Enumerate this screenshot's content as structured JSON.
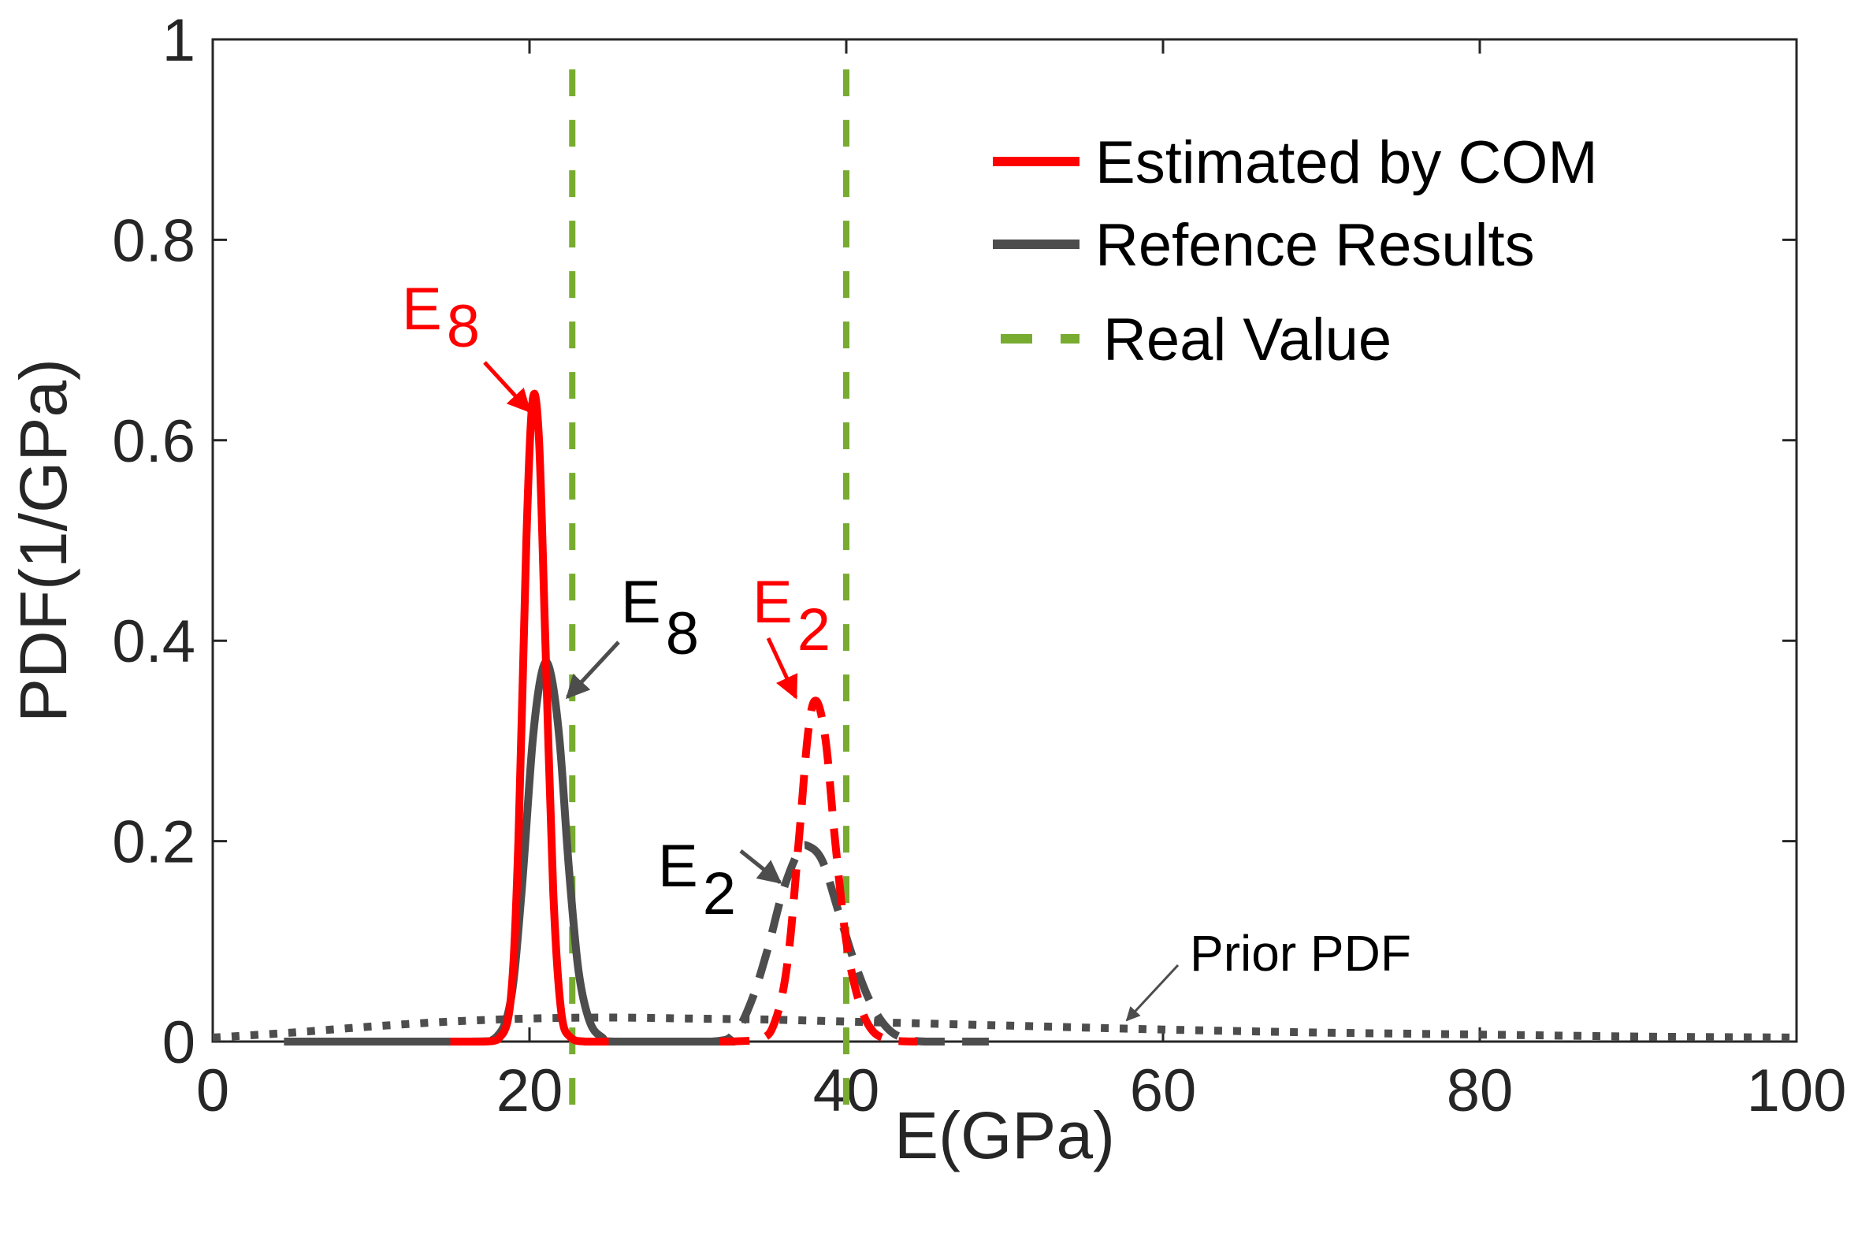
{
  "chart_data": {
    "type": "line",
    "xlabel": "E(GPa)",
    "ylabel": "PDF(1/GPa)",
    "xlim": [
      0,
      100
    ],
    "ylim": [
      0,
      1
    ],
    "xticks": [
      "0",
      "20",
      "40",
      "60",
      "80",
      "100"
    ],
    "yticks": [
      "0",
      "0.2",
      "0.4",
      "0.6",
      "0.8",
      "1"
    ],
    "grid": false,
    "legend": {
      "placement": "top-right",
      "entries": [
        {
          "label": "Estimated by COM",
          "color": "#ff0000",
          "style": "solid"
        },
        {
          "label": "Refence Results",
          "color": "#4d4d4d",
          "style": "solid"
        },
        {
          "label": "Real Value",
          "color": "#77ac30",
          "style": "dashed"
        }
      ]
    },
    "series": [
      {
        "name": "Estimated by COM E8",
        "color": "#ff0000",
        "style": "solid",
        "x": [
          15,
          17,
          18,
          18.8,
          19.3,
          19.8,
          20.2,
          20.6,
          21.0,
          21.5,
          22.0,
          22.6,
          23.5,
          25
        ],
        "y": [
          0,
          0,
          0.002,
          0.04,
          0.2,
          0.5,
          0.64,
          0.6,
          0.4,
          0.15,
          0.03,
          0.004,
          0,
          0
        ]
      },
      {
        "name": "Refence Results E8",
        "color": "#4d4d4d",
        "style": "solid",
        "x": [
          4.5,
          16,
          17.8,
          18.8,
          19.5,
          20.2,
          20.8,
          21.3,
          21.9,
          22.5,
          23.1,
          23.8,
          24.6,
          25.5,
          33
        ],
        "y": [
          0,
          0,
          0.003,
          0.04,
          0.15,
          0.3,
          0.37,
          0.37,
          0.3,
          0.17,
          0.07,
          0.02,
          0.004,
          0,
          0
        ]
      },
      {
        "name": "Estimated by COM E2",
        "color": "#ff0000",
        "style": "dashed",
        "x": [
          32,
          34.5,
          35.5,
          36.3,
          37.0,
          37.6,
          38.1,
          38.7,
          39.3,
          40.0,
          40.8,
          41.7,
          43,
          44.5
        ],
        "y": [
          0,
          0.002,
          0.02,
          0.08,
          0.2,
          0.31,
          0.34,
          0.3,
          0.2,
          0.1,
          0.04,
          0.01,
          0.001,
          0
        ]
      },
      {
        "name": "Refence Results E2",
        "color": "#4d4d4d",
        "style": "dashed",
        "x": [
          25,
          31.5,
          33,
          34,
          35,
          36,
          37,
          37.6,
          38.5,
          39.5,
          40.5,
          41.5,
          42.5,
          43.5,
          45,
          49
        ],
        "y": [
          0,
          0,
          0.01,
          0.04,
          0.09,
          0.15,
          0.19,
          0.195,
          0.18,
          0.13,
          0.08,
          0.04,
          0.015,
          0.004,
          0,
          0
        ]
      },
      {
        "name": "Prior PDF",
        "color": "#4d4d4d",
        "style": "dotted",
        "x": [
          0,
          5,
          10,
          15,
          20,
          25,
          30,
          35,
          40,
          45,
          50,
          55,
          60,
          70,
          80,
          90,
          100
        ],
        "y": [
          0.004,
          0.009,
          0.015,
          0.02,
          0.023,
          0.024,
          0.023,
          0.022,
          0.02,
          0.018,
          0.016,
          0.014,
          0.012,
          0.009,
          0.007,
          0.005,
          0.004
        ]
      }
    ],
    "reference_lines": [
      {
        "name": "Real Value E8",
        "x": 22.7,
        "color": "#77ac30",
        "style": "dashed"
      },
      {
        "name": "Real Value E2",
        "x": 40,
        "color": "#77ac30",
        "style": "dashed"
      }
    ],
    "annotations": [
      {
        "id": "e8-red",
        "text": "E",
        "sub": "8",
        "color": "#ff0000",
        "at": [
          20.3,
          0.63
        ]
      },
      {
        "id": "e8-gray",
        "text": "E",
        "sub": "8",
        "color": "#000000",
        "at": [
          21.6,
          0.34
        ]
      },
      {
        "id": "e2-red",
        "text": "E",
        "sub": "2",
        "color": "#ff0000",
        "at": [
          38.2,
          0.34
        ]
      },
      {
        "id": "e2-gray",
        "text": "E",
        "sub": "2",
        "color": "#000000",
        "at": [
          35.9,
          0.155
        ]
      },
      {
        "id": "prior",
        "text": "Prior PDF",
        "color": "#000000",
        "at": [
          57,
          0.013
        ]
      }
    ]
  }
}
